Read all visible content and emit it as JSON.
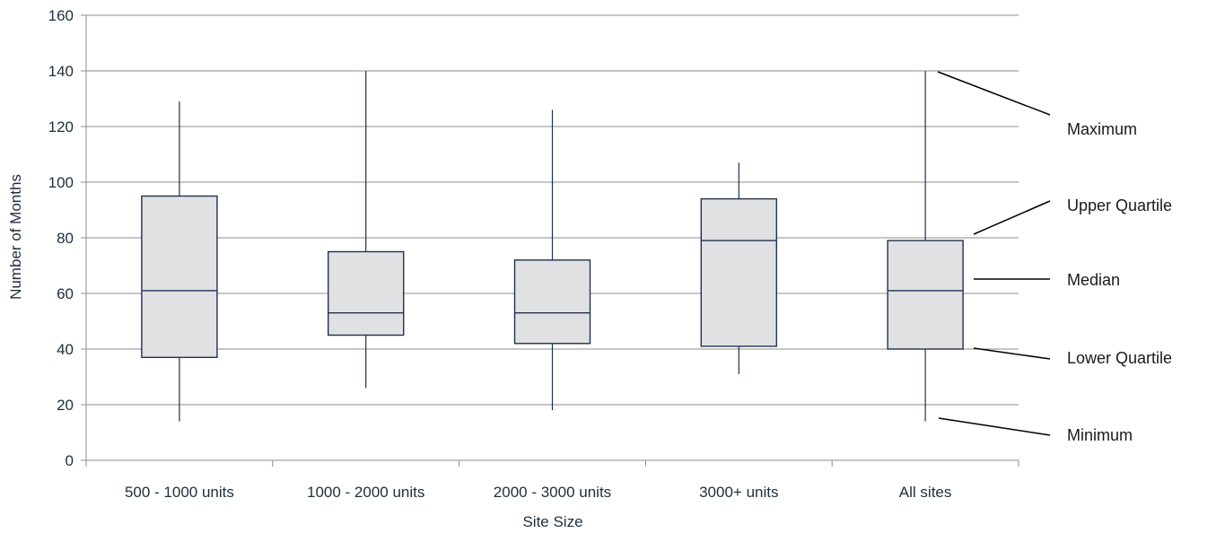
{
  "chart_data": {
    "type": "box",
    "title": "",
    "xlabel": "Site Size",
    "ylabel": "Number of Months",
    "ylim": [
      0,
      160
    ],
    "yticks": [
      0,
      20,
      40,
      60,
      80,
      100,
      120,
      140,
      160
    ],
    "grid": true,
    "categories": [
      "500 - 1000 units",
      "1000 - 2000 units",
      "2000 - 3000 units",
      "3000+ units",
      "All sites"
    ],
    "boxes": [
      {
        "min": 14,
        "q1": 37,
        "median": 61,
        "q3": 95,
        "max": 129
      },
      {
        "min": 26,
        "q1": 45,
        "median": 53,
        "q3": 75,
        "max": 140
      },
      {
        "min": 18,
        "q1": 42,
        "median": 53,
        "q3": 72,
        "max": 126
      },
      {
        "min": 31,
        "q1": 41,
        "median": 79,
        "q3": 94,
        "max": 107
      },
      {
        "min": 14,
        "q1": 40,
        "median": 61,
        "q3": 79,
        "max": 140
      }
    ],
    "annotations": {
      "maximum": "Maximum",
      "upper_quartile": "Upper Quartile",
      "median": "Median",
      "lower_quartile": "Lower Quartile",
      "minimum": "Minimum"
    },
    "colors": {
      "box_fill": "#e1e1e3",
      "box_stroke": "#1f3150",
      "grid": "#8c8c8c",
      "text": "#1f2d3d"
    }
  }
}
